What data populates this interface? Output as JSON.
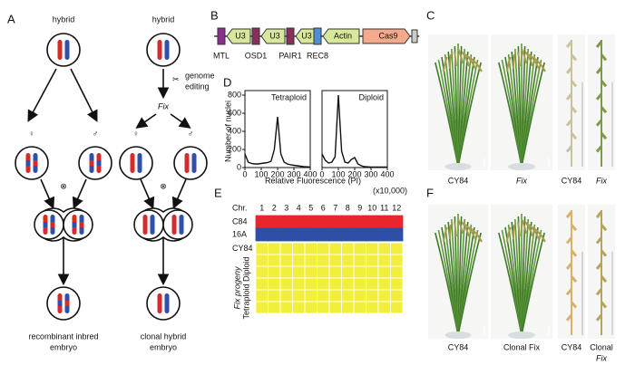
{
  "panel_labels": [
    "A",
    "B",
    "C",
    "D",
    "E",
    "F"
  ],
  "panel_a": {
    "hybrid": "hybrid",
    "genome_editing": [
      "genome",
      "editing"
    ],
    "fix": "Fix",
    "female": "♀",
    "male": "♂",
    "self": "⊗",
    "left_caption": [
      "recombinant inbred",
      "embryo"
    ],
    "right_caption": [
      "clonal hybrid",
      "embryo"
    ]
  },
  "panel_b": {
    "elements": [
      "U3",
      "U3",
      "U3",
      "Actin",
      "Cas9"
    ],
    "genes": [
      "MTL",
      "OSD1",
      "PAIR1",
      "REC8"
    ]
  },
  "panel_d": {
    "y_label": "Number of nuclei",
    "x_label": "Relative Fluorescence (PI)",
    "x_unit": "(x10,000)",
    "xlim": [
      0,
      400
    ],
    "ylim": [
      0,
      850
    ],
    "xticks": [
      0,
      100,
      200,
      300,
      400
    ],
    "yticks": [
      0,
      200,
      400,
      600,
      800
    ],
    "x": [
      0,
      20,
      40,
      60,
      80,
      100,
      120,
      140,
      160,
      180,
      200,
      220,
      240,
      260,
      280,
      300,
      320,
      340,
      360,
      380,
      400
    ],
    "plots": [
      {
        "name": "Tetraploid",
        "values": [
          150,
          60,
          45,
          40,
          40,
          45,
          50,
          55,
          70,
          200,
          560,
          150,
          60,
          40,
          30,
          25,
          20,
          15,
          10,
          8,
          5
        ]
      },
      {
        "name": "Diploid",
        "values": [
          150,
          80,
          50,
          60,
          120,
          800,
          180,
          60,
          50,
          90,
          110,
          40,
          20,
          10,
          8,
          5,
          5,
          5,
          5,
          5,
          5
        ]
      }
    ]
  },
  "panel_e": {
    "header": "Chr.",
    "chromosomes": [
      "1",
      "2",
      "3",
      "4",
      "5",
      "6",
      "7",
      "8",
      "9",
      "10",
      "11",
      "12"
    ],
    "rows": [
      {
        "label": "C84",
        "color": "#e8262b"
      },
      {
        "label": "16A",
        "color": "#2e4fa8"
      },
      {
        "label": "CY84",
        "color": "#f2ef3c"
      }
    ],
    "side_labels": [
      "Fix progeny",
      "Tetraploid Diploid"
    ]
  },
  "panel_c": {
    "captions": [
      "CY84",
      "Fix",
      "CY84",
      "Fix"
    ]
  },
  "panel_f": {
    "captions": [
      "CY84",
      "Clonal Fix",
      "CY84",
      "Clonal",
      "Fix"
    ]
  }
}
